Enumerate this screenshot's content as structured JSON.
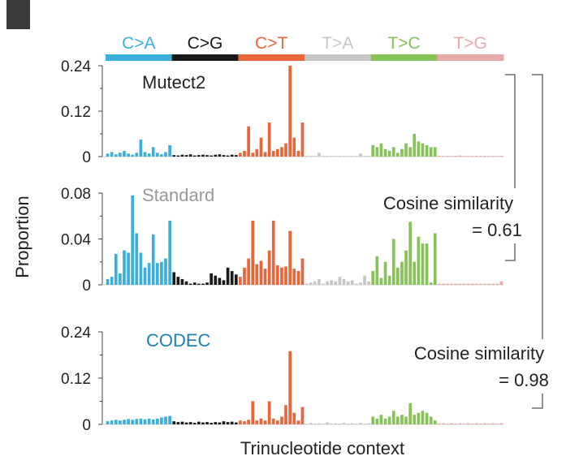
{
  "chart_data": {
    "type": "bar",
    "figure_label": "",
    "xlabel": "Trinucleotide context",
    "ylabel": "Proportion",
    "mutation_classes": [
      {
        "label": "C>A",
        "color": "#3aaedc"
      },
      {
        "label": "C>G",
        "color": "#1a1a1a"
      },
      {
        "label": "C>T",
        "color": "#e8663a"
      },
      {
        "label": "T>A",
        "color": "#c6c6c6"
      },
      {
        "label": "T>C",
        "color": "#86c257"
      },
      {
        "label": "T>G",
        "color": "#e8a9a9"
      }
    ],
    "panels": [
      {
        "name": "Mutect2",
        "title_color": "#222222",
        "ylim": [
          0,
          0.24
        ],
        "ticks": [
          "0.24",
          "0.12",
          "0"
        ],
        "tick_values": [
          0.24,
          0.12,
          0
        ],
        "values": [
          [
            0.008,
            0.012,
            0.006,
            0.01,
            0.015,
            0.008,
            0.005,
            0.01,
            0.045,
            0.012,
            0.008,
            0.025,
            0.01,
            0.006,
            0.012,
            0.03
          ],
          [
            0.004,
            0.003,
            0.005,
            0.004,
            0.006,
            0.003,
            0.004,
            0.005,
            0.004,
            0.003,
            0.005,
            0.006,
            0.004,
            0.003,
            0.005,
            0.004
          ],
          [
            0.01,
            0.015,
            0.08,
            0.01,
            0.02,
            0.05,
            0.012,
            0.09,
            0.015,
            0.02,
            0.025,
            0.035,
            0.24,
            0.05,
            0.015,
            0.09
          ],
          [
            0.001,
            0.002,
            0.001,
            0.01,
            0.001,
            0.002,
            0.001,
            0.001,
            0.002,
            0.001,
            0.001,
            0.002,
            0.001,
            0.008,
            0.001,
            0.002
          ],
          [
            0.03,
            0.025,
            0.035,
            0.02,
            0.015,
            0.025,
            0.01,
            0.02,
            0.035,
            0.025,
            0.06,
            0.04,
            0.035,
            0.03,
            0.025,
            0.025
          ],
          [
            0.002,
            0.001,
            0.002,
            0.001,
            0.002,
            0.003,
            0.001,
            0.002,
            0.001,
            0.002,
            0.001,
            0.002,
            0.001,
            0.002,
            0.001,
            0.002
          ]
        ]
      },
      {
        "name": "Standard",
        "title_color": "#9a9a9a",
        "ylim": [
          0,
          0.08
        ],
        "ticks": [
          "0.08",
          "0.04",
          "0"
        ],
        "tick_values": [
          0.08,
          0.04,
          0
        ],
        "values": [
          [
            0.005,
            0.007,
            0.027,
            0.01,
            0.03,
            0.028,
            0.078,
            0.045,
            0.028,
            0.015,
            0.019,
            0.044,
            0.019,
            0.02,
            0.023,
            0.056
          ],
          [
            0.011,
            0.007,
            0.005,
            0.003,
            0.001,
            0.002,
            0.001,
            0.001,
            0.002,
            0.01,
            0.008,
            0.006,
            0.004,
            0.015,
            0.012,
            0.009
          ],
          [
            0.007,
            0.015,
            0.023,
            0.056,
            0.018,
            0.021,
            0.014,
            0.03,
            0.056,
            0.017,
            0.015,
            0.016,
            0.047,
            0.014,
            0.012,
            0.023
          ],
          [
            0.001,
            0.002,
            0.003,
            0.005,
            0.001,
            0.003,
            0.004,
            0.003,
            0.007,
            0.005,
            0.003,
            0.004,
            0.001,
            0.002,
            0.008,
            0.003
          ],
          [
            0.012,
            0.025,
            0.006,
            0.02,
            0.008,
            0.04,
            0.015,
            0.02,
            0.03,
            0.055,
            0.02,
            0.042,
            0.036,
            0.036,
            0.002,
            0.045
          ],
          [
            0.001,
            0.001,
            0.001,
            0.001,
            0.001,
            0.001,
            0.001,
            0.001,
            0.001,
            0.001,
            0.001,
            0.001,
            0.001,
            0.001,
            0.001,
            0.003
          ]
        ]
      },
      {
        "name": "CODEC",
        "title_color": "#1f7fb4",
        "ylim": [
          0,
          0.24
        ],
        "ticks": [
          "0.24",
          "0.12",
          "0"
        ],
        "tick_values": [
          0.24,
          0.12,
          0
        ],
        "values": [
          [
            0.008,
            0.01,
            0.012,
            0.01,
            0.012,
            0.014,
            0.012,
            0.014,
            0.015,
            0.013,
            0.015,
            0.013,
            0.015,
            0.018,
            0.02,
            0.022
          ],
          [
            0.008,
            0.006,
            0.007,
            0.005,
            0.006,
            0.004,
            0.007,
            0.005,
            0.006,
            0.004,
            0.006,
            0.005,
            0.008,
            0.006,
            0.007,
            0.005
          ],
          [
            0.01,
            0.008,
            0.012,
            0.06,
            0.01,
            0.015,
            0.01,
            0.06,
            0.015,
            0.01,
            0.02,
            0.05,
            0.19,
            0.03,
            0.01,
            0.045
          ],
          [
            0.002,
            0.004,
            0.002,
            0.003,
            0.002,
            0.005,
            0.002,
            0.003,
            0.002,
            0.004,
            0.002,
            0.003,
            0.002,
            0.004,
            0.002,
            0.003
          ],
          [
            0.02,
            0.015,
            0.025,
            0.015,
            0.02,
            0.035,
            0.02,
            0.025,
            0.02,
            0.055,
            0.025,
            0.03,
            0.035,
            0.03,
            0.02,
            0.01
          ],
          [
            0.002,
            0.003,
            0.002,
            0.003,
            0.002,
            0.003,
            0.002,
            0.003,
            0.002,
            0.003,
            0.002,
            0.003,
            0.002,
            0.003,
            0.002,
            0.003
          ]
        ]
      }
    ],
    "annotations": [
      {
        "text": [
          "Cosine similarity",
          "= 0.61"
        ],
        "between": [
          "Mutect2",
          "Standard"
        ]
      },
      {
        "text": [
          "Cosine similarity",
          "= 0.98"
        ],
        "between": [
          "Mutect2",
          "CODEC"
        ]
      }
    ]
  }
}
